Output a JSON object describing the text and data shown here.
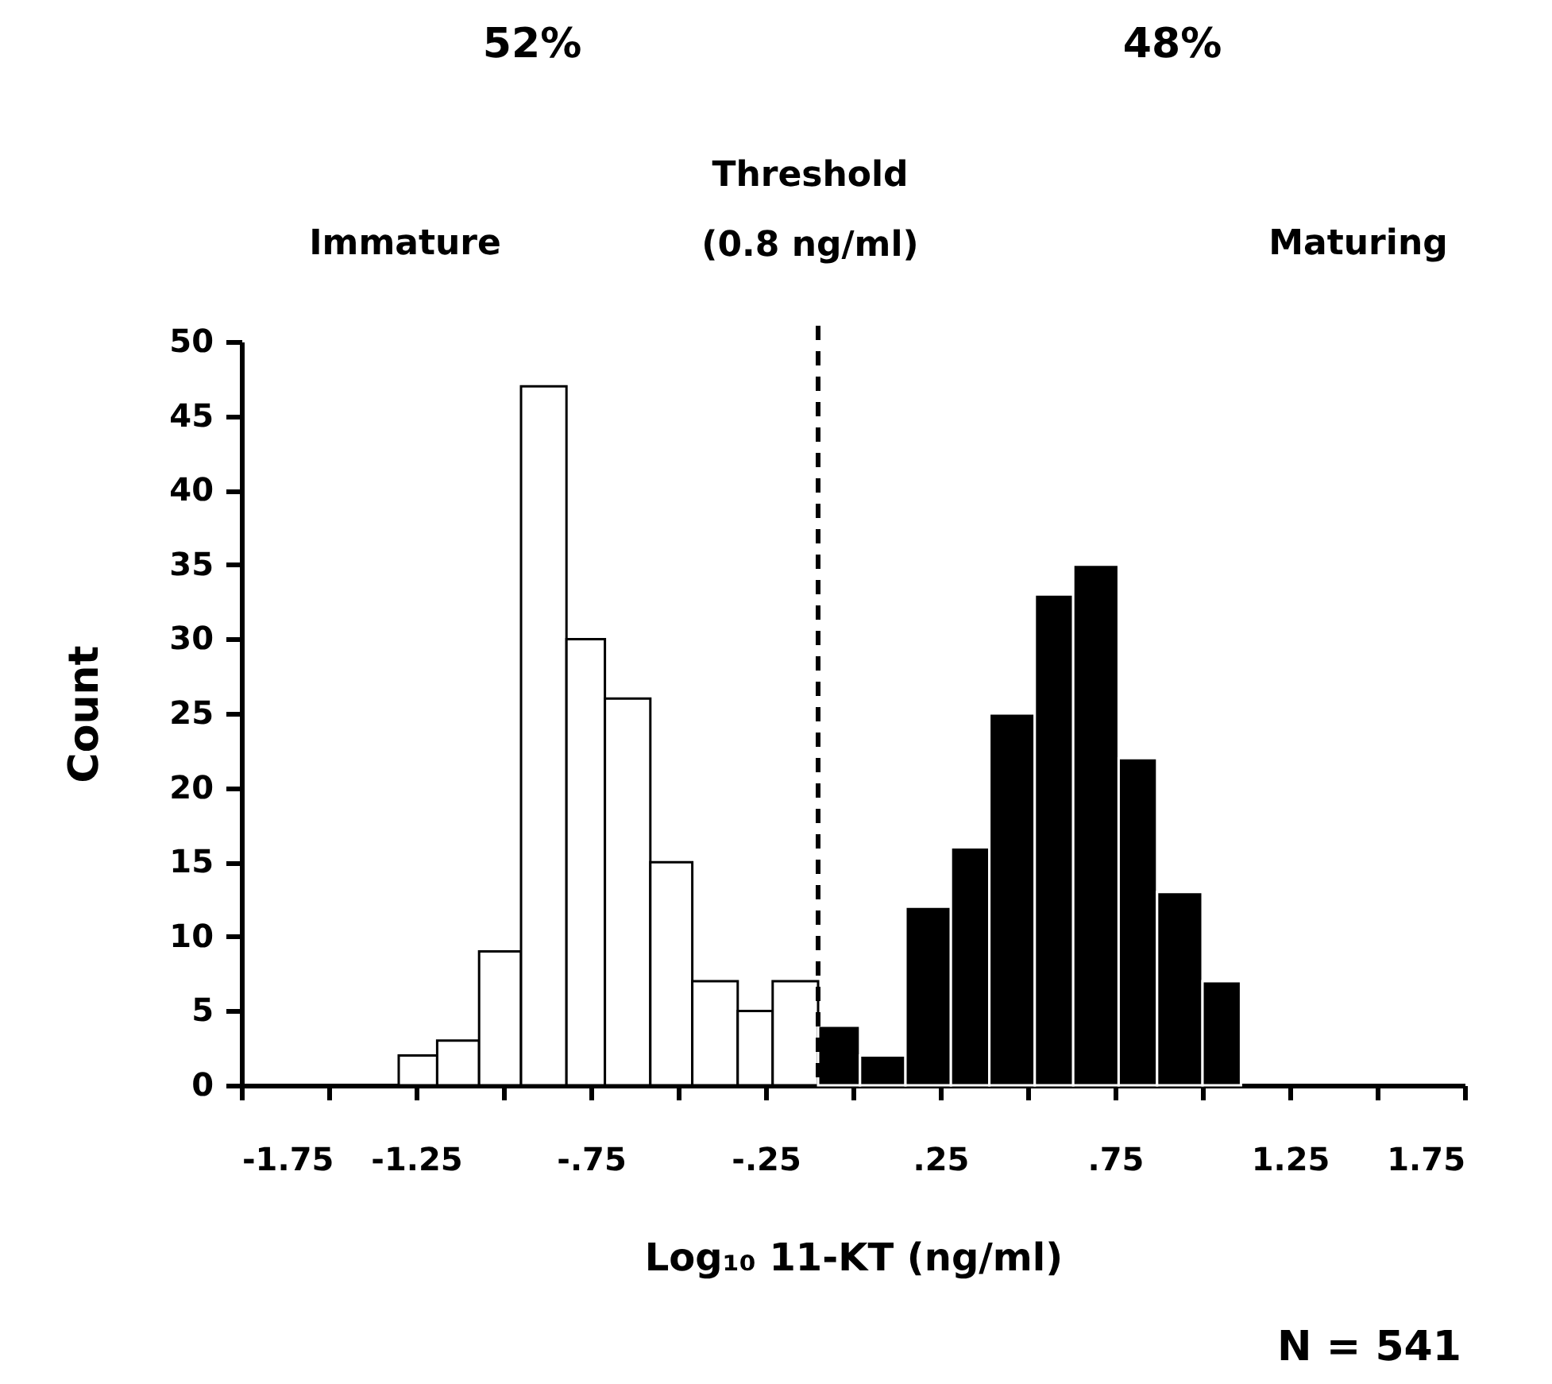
{
  "chart_data": {
    "type": "histogram",
    "xlabel": "Log₁₀ 11-KT (ng/ml)",
    "ylabel": "Count",
    "bins": [
      -1.3,
      -1.19,
      -1.07,
      -0.95,
      -0.82,
      -0.71,
      -0.58,
      -0.46,
      -0.33,
      -0.23,
      -0.1,
      0.02,
      0.15,
      0.28,
      0.39,
      0.52,
      0.63,
      0.76,
      0.87,
      1.0,
      1.11
    ],
    "values": [
      2,
      3,
      9,
      47,
      30,
      26,
      15,
      7,
      5,
      7,
      4,
      2,
      12,
      16,
      25,
      33,
      35,
      22,
      13,
      7
    ],
    "colors": [
      "#ffffff",
      "#ffffff",
      "#ffffff",
      "#ffffff",
      "#ffffff",
      "#ffffff",
      "#ffffff",
      "#ffffff",
      "#ffffff",
      "#ffffff",
      "#000000",
      "#000000",
      "#000000",
      "#000000",
      "#000000",
      "#000000",
      "#000000",
      "#000000",
      "#000000",
      "#000000"
    ],
    "xlim": [
      -1.75,
      1.75
    ],
    "xticks": [
      {
        "value": -1.75,
        "label": "-1.75"
      },
      {
        "value": -1.5,
        "label": null
      },
      {
        "value": -1.25,
        "label": "-1.25"
      },
      {
        "value": -1.0,
        "label": null
      },
      {
        "value": -0.75,
        "label": "-.75"
      },
      {
        "value": -0.5,
        "label": null
      },
      {
        "value": -0.25,
        "label": "-.25"
      },
      {
        "value": 0,
        "label": null
      },
      {
        "value": 0.25,
        "label": ".25"
      },
      {
        "value": 0.5,
        "label": null
      },
      {
        "value": 0.75,
        "label": ".75"
      },
      {
        "value": 1.0,
        "label": null
      },
      {
        "value": 1.25,
        "label": "1.25"
      },
      {
        "value": 1.5,
        "label": null
      },
      {
        "value": 1.75,
        "label": "1.75"
      }
    ],
    "ylim": [
      0,
      50
    ],
    "yticks": [
      0,
      5,
      10,
      15,
      20,
      25,
      30,
      35,
      40,
      45,
      50
    ],
    "grid": false,
    "ref_lines": [
      {
        "axis": "x",
        "value": -0.1,
        "label": "Threshold\n(0.8 ng/ml)",
        "line_style": "dashed",
        "color": "#000000"
      }
    ],
    "annotations": [
      "52%",
      "48%",
      "Immature",
      "Maturing",
      "N = 541"
    ]
  }
}
